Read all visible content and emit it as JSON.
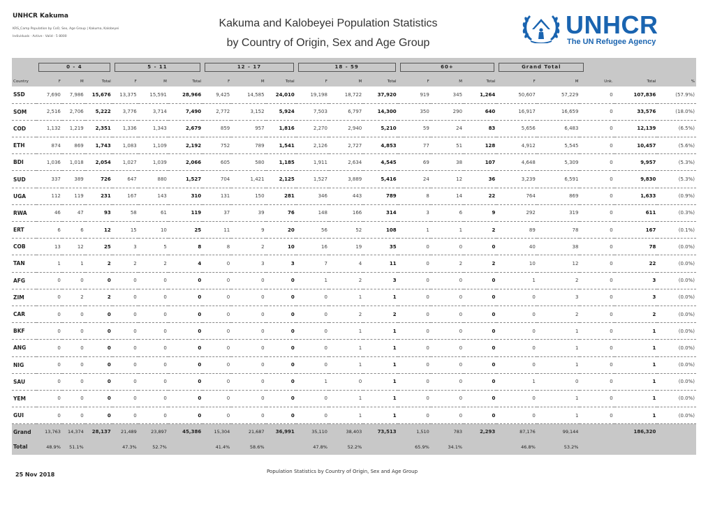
{
  "header": {
    "org": "UNHCR Kakuma",
    "report_name": "KRS_Camp Population by CoO, Sex, Age Group | Kakuma, Kalobeyei",
    "filter_line": "Individuals · Active · Valid · 5 8000",
    "title_line1": "Kakuma and Kalobeyei Population Statistics",
    "title_line2": "by Country of Origin, Sex and Age Group",
    "logo_name": "UNHCR",
    "logo_tagline": "The UN Refugee Agency",
    "logo_color": "#1a64b0"
  },
  "table": {
    "age_groups": [
      "0 - 4",
      "5 - 11",
      "12 - 17",
      "18 - 59",
      "60+",
      "Grand Total"
    ],
    "columns": [
      "Country",
      "F",
      "M",
      "Total",
      "F",
      "M",
      "Total",
      "F",
      "M",
      "Total",
      "F",
      "M",
      "Total",
      "F",
      "M",
      "Total",
      "F",
      "M",
      "Unk.",
      "Total",
      "%"
    ],
    "rows": [
      [
        "SSD",
        "7,690",
        "7,986",
        "15,676",
        "13,375",
        "15,591",
        "28,966",
        "9,425",
        "14,585",
        "24,010",
        "19,198",
        "18,722",
        "37,920",
        "919",
        "345",
        "1,264",
        "50,607",
        "57,229",
        "0",
        "107,836",
        "(57.9%)"
      ],
      [
        "SOM",
        "2,516",
        "2,706",
        "5,222",
        "3,776",
        "3,714",
        "7,490",
        "2,772",
        "3,152",
        "5,924",
        "7,503",
        "6,797",
        "14,300",
        "350",
        "290",
        "640",
        "16,917",
        "16,659",
        "0",
        "33,576",
        "(18.0%)"
      ],
      [
        "COD",
        "1,132",
        "1,219",
        "2,351",
        "1,336",
        "1,343",
        "2,679",
        "859",
        "957",
        "1,816",
        "2,270",
        "2,940",
        "5,210",
        "59",
        "24",
        "83",
        "5,656",
        "6,483",
        "0",
        "12,139",
        "(6.5%)"
      ],
      [
        "ETH",
        "874",
        "869",
        "1,743",
        "1,083",
        "1,109",
        "2,192",
        "752",
        "789",
        "1,541",
        "2,126",
        "2,727",
        "4,853",
        "77",
        "51",
        "128",
        "4,912",
        "5,545",
        "0",
        "10,457",
        "(5.6%)"
      ],
      [
        "BDI",
        "1,036",
        "1,018",
        "2,054",
        "1,027",
        "1,039",
        "2,066",
        "605",
        "580",
        "1,185",
        "1,911",
        "2,634",
        "4,545",
        "69",
        "38",
        "107",
        "4,648",
        "5,309",
        "0",
        "9,957",
        "(5.3%)"
      ],
      [
        "SUD",
        "337",
        "389",
        "726",
        "647",
        "880",
        "1,527",
        "704",
        "1,421",
        "2,125",
        "1,527",
        "3,889",
        "5,416",
        "24",
        "12",
        "36",
        "3,239",
        "6,591",
        "0",
        "9,830",
        "(5.3%)"
      ],
      [
        "UGA",
        "112",
        "119",
        "231",
        "167",
        "143",
        "310",
        "131",
        "150",
        "281",
        "346",
        "443",
        "789",
        "8",
        "14",
        "22",
        "764",
        "869",
        "0",
        "1,633",
        "(0.9%)"
      ],
      [
        "RWA",
        "46",
        "47",
        "93",
        "58",
        "61",
        "119",
        "37",
        "39",
        "76",
        "148",
        "166",
        "314",
        "3",
        "6",
        "9",
        "292",
        "319",
        "0",
        "611",
        "(0.3%)"
      ],
      [
        "ERT",
        "6",
        "6",
        "12",
        "15",
        "10",
        "25",
        "11",
        "9",
        "20",
        "56",
        "52",
        "108",
        "1",
        "1",
        "2",
        "89",
        "78",
        "0",
        "167",
        "(0.1%)"
      ],
      [
        "COB",
        "13",
        "12",
        "25",
        "3",
        "5",
        "8",
        "8",
        "2",
        "10",
        "16",
        "19",
        "35",
        "0",
        "0",
        "0",
        "40",
        "38",
        "0",
        "78",
        "(0.0%)"
      ],
      [
        "TAN",
        "1",
        "1",
        "2",
        "2",
        "2",
        "4",
        "0",
        "3",
        "3",
        "7",
        "4",
        "11",
        "0",
        "2",
        "2",
        "10",
        "12",
        "0",
        "22",
        "(0.0%)"
      ],
      [
        "AFG",
        "0",
        "0",
        "0",
        "0",
        "0",
        "0",
        "0",
        "0",
        "0",
        "1",
        "2",
        "3",
        "0",
        "0",
        "0",
        "1",
        "2",
        "0",
        "3",
        "(0.0%)"
      ],
      [
        "ZIM",
        "0",
        "2",
        "2",
        "0",
        "0",
        "0",
        "0",
        "0",
        "0",
        "0",
        "1",
        "1",
        "0",
        "0",
        "0",
        "0",
        "3",
        "0",
        "3",
        "(0.0%)"
      ],
      [
        "CAR",
        "0",
        "0",
        "0",
        "0",
        "0",
        "0",
        "0",
        "0",
        "0",
        "0",
        "2",
        "2",
        "0",
        "0",
        "0",
        "0",
        "2",
        "0",
        "2",
        "(0.0%)"
      ],
      [
        "BKF",
        "0",
        "0",
        "0",
        "0",
        "0",
        "0",
        "0",
        "0",
        "0",
        "0",
        "1",
        "1",
        "0",
        "0",
        "0",
        "0",
        "1",
        "0",
        "1",
        "(0.0%)"
      ],
      [
        "ANG",
        "0",
        "0",
        "0",
        "0",
        "0",
        "0",
        "0",
        "0",
        "0",
        "0",
        "1",
        "1",
        "0",
        "0",
        "0",
        "0",
        "1",
        "0",
        "1",
        "(0.0%)"
      ],
      [
        "NIG",
        "0",
        "0",
        "0",
        "0",
        "0",
        "0",
        "0",
        "0",
        "0",
        "0",
        "1",
        "1",
        "0",
        "0",
        "0",
        "0",
        "1",
        "0",
        "1",
        "(0.0%)"
      ],
      [
        "SAU",
        "0",
        "0",
        "0",
        "0",
        "0",
        "0",
        "0",
        "0",
        "0",
        "1",
        "0",
        "1",
        "0",
        "0",
        "0",
        "1",
        "0",
        "0",
        "1",
        "(0.0%)"
      ],
      [
        "YEM",
        "0",
        "0",
        "0",
        "0",
        "0",
        "0",
        "0",
        "0",
        "0",
        "0",
        "1",
        "1",
        "0",
        "0",
        "0",
        "0",
        "1",
        "0",
        "1",
        "(0.0%)"
      ],
      [
        "GUI",
        "0",
        "0",
        "0",
        "0",
        "0",
        "0",
        "0",
        "0",
        "0",
        "0",
        "1",
        "1",
        "0",
        "0",
        "0",
        "0",
        "1",
        "0",
        "1",
        "(0.0%)"
      ]
    ],
    "grand_total": {
      "label_line1": "Grand",
      "label_line2": "Total",
      "values": [
        "13,763",
        "14,374",
        "28,137",
        "21,489",
        "23,897",
        "45,386",
        "15,304",
        "21,687",
        "36,991",
        "35,110",
        "38,403",
        "73,513",
        "1,510",
        "783",
        "2,293",
        "87,176",
        "99,144",
        "",
        "186,320",
        ""
      ],
      "percents": [
        "48.9%",
        "51.1%",
        "",
        "47.3%",
        "52.7%",
        "",
        "41.4%",
        "58.6%",
        "",
        "47.8%",
        "52.2%",
        "",
        "65.9%",
        "34.1%",
        "",
        "46.8%",
        "53.2%",
        "",
        "",
        ""
      ]
    }
  },
  "footer": {
    "date": "25 Nov 2018",
    "center_text": "Population Statistics by Country of Origin, Sex and Age Group"
  }
}
